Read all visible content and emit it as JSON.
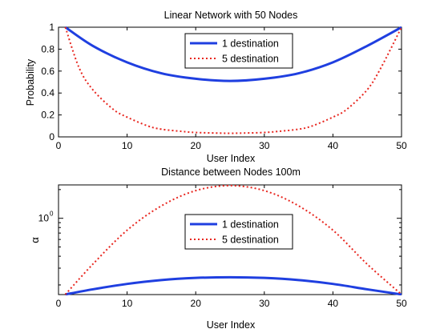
{
  "chart_data": [
    {
      "type": "line",
      "title": "Linear Network with 50 Nodes",
      "xlabel": "User Index",
      "ylabel": "Probability",
      "xlim": [
        0,
        50
      ],
      "ylim": [
        0,
        1
      ],
      "xticks": [
        0,
        10,
        20,
        30,
        40,
        50
      ],
      "yticks": [
        0,
        0.2,
        0.4,
        0.6,
        0.8,
        1
      ],
      "ytick_labels": [
        "0",
        "0.2",
        "0.4",
        "0.6",
        "0.8",
        "1"
      ],
      "grid": false,
      "legend": "top-center",
      "series": [
        {
          "name": "1 destination",
          "color": "#1f3fe0",
          "style": "solid",
          "x": [
            1,
            5,
            10,
            15,
            20,
            25,
            30,
            35,
            40,
            45,
            50
          ],
          "y": [
            1.0,
            0.83,
            0.68,
            0.58,
            0.53,
            0.51,
            0.53,
            0.58,
            0.68,
            0.83,
            1.0
          ]
        },
        {
          "name": "5 destination",
          "color": "#e8261f",
          "style": "dotted",
          "x": [
            1,
            3,
            5,
            8,
            10,
            13,
            15,
            18,
            20,
            23,
            25,
            27,
            30,
            32,
            35,
            37,
            40,
            42,
            45,
            47,
            50
          ],
          "y": [
            1.0,
            0.63,
            0.43,
            0.25,
            0.18,
            0.1,
            0.07,
            0.05,
            0.04,
            0.035,
            0.033,
            0.035,
            0.04,
            0.05,
            0.07,
            0.1,
            0.18,
            0.25,
            0.43,
            0.63,
            1.0
          ]
        }
      ]
    },
    {
      "type": "line",
      "title": "Distance between Nodes 100m",
      "xlabel": "User Index",
      "ylabel": "α",
      "xlim": [
        0,
        50
      ],
      "ylim_log10": [
        -0.8,
        0.35
      ],
      "xticks": [
        0,
        10,
        20,
        30,
        40,
        50
      ],
      "ytick_label_base": "10",
      "ytick_label_exponent": "0",
      "ytick_value": 1,
      "yscale": "log",
      "grid": false,
      "legend": "center",
      "series": [
        {
          "name": "1 destination",
          "color": "#1f3fe0",
          "style": "solid",
          "x": [
            1,
            5,
            10,
            15,
            20,
            25,
            30,
            35,
            40,
            45,
            50
          ],
          "y": [
            0.159,
            0.18,
            0.205,
            0.225,
            0.237,
            0.241,
            0.237,
            0.225,
            0.205,
            0.18,
            0.159
          ]
        },
        {
          "name": "5 destination",
          "color": "#e8261f",
          "style": "dotted",
          "x": [
            1,
            5,
            10,
            15,
            20,
            25,
            30,
            35,
            40,
            45,
            50
          ],
          "y": [
            0.159,
            0.33,
            0.75,
            1.35,
            1.95,
            2.2,
            1.95,
            1.35,
            0.75,
            0.33,
            0.159
          ]
        }
      ]
    }
  ]
}
